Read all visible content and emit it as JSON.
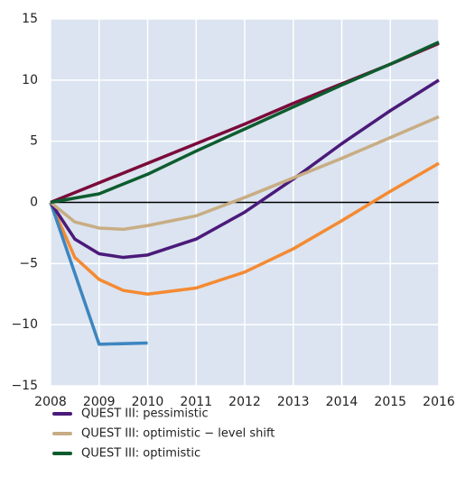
{
  "chart_data": {
    "type": "line",
    "xlim": [
      2008,
      2016
    ],
    "xticks": [
      2008,
      2009,
      2010,
      2011,
      2012,
      2013,
      2014,
      2015,
      2016
    ],
    "ylim": [
      -15,
      15
    ],
    "yticks": [
      {
        "value": -15,
        "label": "−15"
      },
      {
        "value": -10,
        "label": "−10"
      },
      {
        "value": -5,
        "label": "−5"
      },
      0,
      5,
      10,
      15
    ],
    "grid": true,
    "series": [
      {
        "color": "#7a0a3a",
        "x": [
          2008,
          2009,
          2010,
          2011,
          2012,
          2013,
          2014,
          2015,
          2016
        ],
        "values": [
          0,
          1.6,
          3.2,
          4.8,
          6.4,
          8.1,
          9.7,
          11.3,
          13.0
        ]
      },
      {
        "color": "#f58a32",
        "x": [
          2008,
          2008.5,
          2009,
          2009.5,
          2010,
          2011,
          2012,
          2013,
          2014,
          2015,
          2016
        ],
        "values": [
          0,
          -4.5,
          -6.3,
          -7.2,
          -7.5,
          -7.0,
          -5.7,
          -3.8,
          -1.5,
          0.9,
          3.2
        ]
      },
      {
        "color": "#3d85c0",
        "x": [
          2008,
          2009,
          2010
        ],
        "values": [
          0,
          -11.6,
          -11.5
        ]
      },
      {
        "name": "QUEST III: pessimistic",
        "color": "#4b1a7a",
        "x": [
          2008,
          2008.5,
          2009,
          2009.5,
          2010,
          2011,
          2012,
          2013,
          2014,
          2015,
          2016
        ],
        "values": [
          0,
          -3.0,
          -4.2,
          -4.5,
          -4.3,
          -3.0,
          -0.8,
          1.9,
          4.8,
          7.5,
          10.0
        ]
      },
      {
        "name": "QUEST III: optimistic − level shift",
        "color": "#c8ad84",
        "x": [
          2008,
          2008.5,
          2009,
          2009.5,
          2010,
          2011,
          2012,
          2013,
          2014,
          2015,
          2016
        ],
        "values": [
          0,
          -1.6,
          -2.1,
          -2.2,
          -1.9,
          -1.1,
          0.4,
          2.0,
          3.6,
          5.3,
          7.0
        ]
      },
      {
        "name": "QUEST III: optimistic",
        "color": "#0d5c2e",
        "x": [
          2008,
          2009,
          2010,
          2011,
          2012,
          2013,
          2014,
          2015,
          2016
        ],
        "values": [
          0,
          0.7,
          2.3,
          4.2,
          6.0,
          7.8,
          9.6,
          11.3,
          13.1
        ]
      }
    ]
  }
}
